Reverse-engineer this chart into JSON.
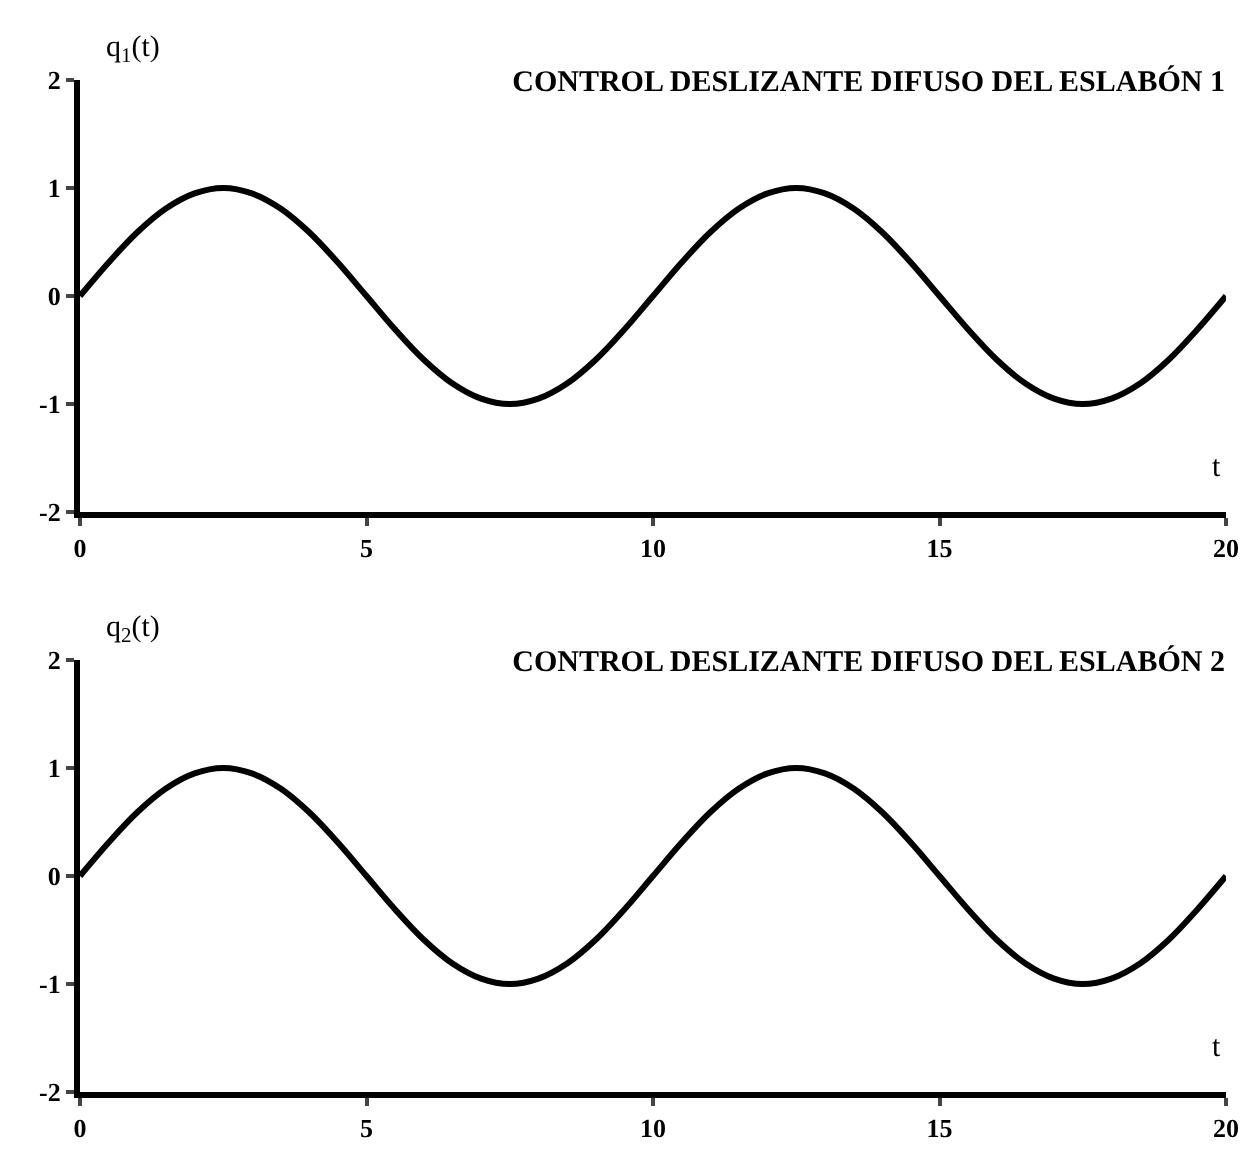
{
  "chart_data": [
    {
      "type": "line",
      "title": "CONTROL DESLIZANTE DIFUSO DEL ESLABÓN 1",
      "xlabel": "t",
      "ylabel": "q$_{1}$(t)",
      "x": [
        0,
        0.5,
        1,
        1.5,
        2,
        2.5,
        3,
        3.5,
        4,
        4.5,
        5,
        5.5,
        6,
        6.5,
        7,
        7.5,
        8,
        8.5,
        9,
        9.5,
        10,
        10.5,
        11,
        11.5,
        12,
        12.5,
        13,
        13.5,
        14,
        14.5,
        15,
        15.5,
        16,
        16.5,
        17,
        17.5,
        18,
        18.5,
        19,
        19.5,
        20
      ],
      "series": [
        {
          "color": "#000000",
          "values": [
            0,
            0.31,
            0.59,
            0.81,
            0.95,
            1,
            0.95,
            0.81,
            0.59,
            0.31,
            0,
            -0.31,
            -0.59,
            -0.81,
            -0.95,
            -1,
            -0.95,
            -0.81,
            -0.59,
            -0.31,
            0,
            0.31,
            0.59,
            0.81,
            0.95,
            1,
            0.95,
            0.81,
            0.59,
            0.31,
            0,
            -0.31,
            -0.59,
            -0.81,
            -0.95,
            -1,
            -0.95,
            -0.81,
            -0.59,
            -0.31,
            0
          ]
        }
      ],
      "xlim": [
        0,
        20
      ],
      "xticks": [
        0,
        5,
        10,
        15,
        20
      ],
      "ylim": [
        -2,
        2
      ],
      "yticks": [
        -2,
        -1,
        0,
        1,
        2
      ],
      "grid": false,
      "marker": "none",
      "line_style": "solid"
    },
    {
      "type": "line",
      "title": "CONTROL DESLIZANTE DIFUSO DEL ESLABÓN 2",
      "xlabel": "t",
      "ylabel": "q$_{2}$(t)",
      "x": [
        0,
        0.5,
        1,
        1.5,
        2,
        2.5,
        3,
        3.5,
        4,
        4.5,
        5,
        5.5,
        6,
        6.5,
        7,
        7.5,
        8,
        8.5,
        9,
        9.5,
        10,
        10.5,
        11,
        11.5,
        12,
        12.5,
        13,
        13.5,
        14,
        14.5,
        15,
        15.5,
        16,
        16.5,
        17,
        17.5,
        18,
        18.5,
        19,
        19.5,
        20
      ],
      "series": [
        {
          "color": "#000000",
          "values": [
            0,
            0.31,
            0.59,
            0.81,
            0.95,
            1,
            0.95,
            0.81,
            0.59,
            0.31,
            0,
            -0.31,
            -0.59,
            -0.81,
            -0.95,
            -1,
            -0.95,
            -0.81,
            -0.59,
            -0.31,
            0,
            0.31,
            0.59,
            0.81,
            0.95,
            1,
            0.95,
            0.81,
            0.59,
            0.31,
            0,
            -0.31,
            -0.59,
            -0.81,
            -0.95,
            -1,
            -0.95,
            -0.81,
            -0.59,
            -0.31,
            0
          ]
        }
      ],
      "xlim": [
        0,
        20
      ],
      "xticks": [
        0,
        5,
        10,
        15,
        20
      ],
      "ylim": [
        -2,
        2
      ],
      "yticks": [
        -2,
        -1,
        0,
        1,
        2
      ],
      "grid": false,
      "marker": "none",
      "line_style": "solid"
    }
  ]
}
